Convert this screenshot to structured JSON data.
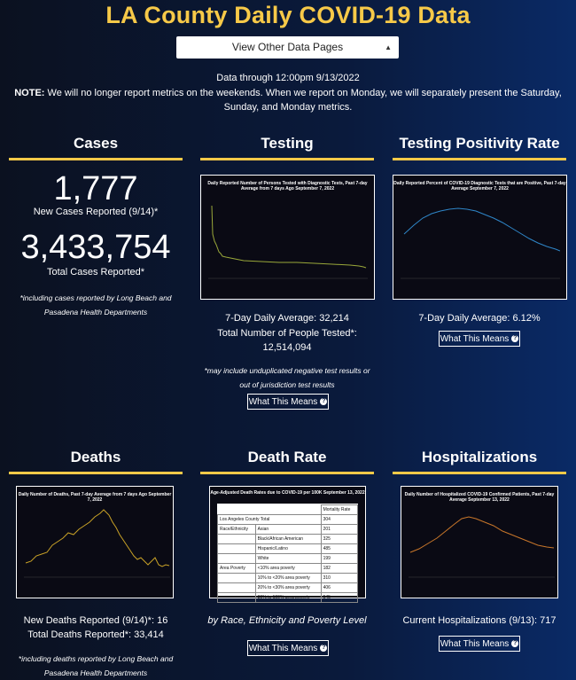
{
  "page": {
    "title": "LA County Daily COVID-19 Data",
    "select_label": "View Other Data Pages",
    "data_through": "Data through 12:00pm 9/13/2022",
    "note_label": "NOTE:",
    "note_text": " We will no longer report metrics on the weekends. When we report on Monday, we will separately present the Saturday, Sunday, and Monday metrics."
  },
  "cases": {
    "title": "Cases",
    "new_cases": "1,777",
    "new_cases_label": "New Cases Reported (9/14)*",
    "total_cases": "3,433,754",
    "total_cases_label": "Total Cases Reported*",
    "footnote": "*including cases reported by Long Beach and Pasadena Health Departments"
  },
  "testing": {
    "title": "Testing",
    "chart_title": "Daily Reported Number of Persons Tested with Diagnostic Tests, Past 7-day Average from 7 days Ago September 7, 2022",
    "avg": "7-Day Daily Average: 32,214",
    "total_label": "Total Number of People Tested*:",
    "total": "12,514,094",
    "footnote": "*may include unduplicated negative test results or out of jurisdiction test results",
    "button": "What This Means"
  },
  "positivity": {
    "title": "Testing Positivity Rate",
    "chart_title": "Daily Reported Percent of COVID-19 Diagnostic Tests that are Positive, Past 7-day Average September 7, 2022",
    "avg": "7-Day Daily Average: 6.12%",
    "button": "What This Means"
  },
  "deaths": {
    "title": "Deaths",
    "chart_title": "Daily Number of Deaths, Past 7-day Average from 7 days Ago September 7, 2022",
    "new": "New Deaths Reported (9/14)*: 16",
    "total": "Total Deaths Reported*: 33,414",
    "footnote": "*including deaths reported by Long Beach and Pasadena Health Departments"
  },
  "death_rate": {
    "title": "Death Rate",
    "chart_title": "Age-Adjusted Death Rates due to COVID-19 per 100K September 13, 2022",
    "col_header": "Mortality Rate",
    "total_label": "Los Angeles County Total",
    "total_value": "304",
    "rows": [
      {
        "group": "Race/Ethnicity",
        "label": "Asian",
        "value": "201"
      },
      {
        "group": "",
        "label": "Black/African American",
        "value": "325"
      },
      {
        "group": "",
        "label": "Hispanic/Latino",
        "value": "485"
      },
      {
        "group": "",
        "label": "White",
        "value": "199"
      },
      {
        "group": "Area Poverty",
        "label": "<10% area poverty",
        "value": "182"
      },
      {
        "group": "",
        "label": "10% to <20% area poverty",
        "value": "310"
      },
      {
        "group": "",
        "label": "20% to <30% area poverty",
        "value": "406"
      },
      {
        "group": "",
        "label": "30% to 100% area poverty",
        "value": "545"
      }
    ],
    "caption": "by Race, Ethnicity and Poverty Level",
    "button": "What This Means"
  },
  "hosp": {
    "title": "Hospitalizations",
    "chart_title": "Daily Number of Hospitalized COVID-19 Confirmed Patients, Past 7-day Average September 13, 2022",
    "current": "Current Hospitalizations (9/13): 717",
    "button": "What This Means"
  },
  "colors": {
    "accent": "#f7c948",
    "testing_line": "#9aa83a",
    "positivity_line": "#2f86c8",
    "deaths_line": "#c9a227",
    "hosp_line": "#c8762a"
  }
}
